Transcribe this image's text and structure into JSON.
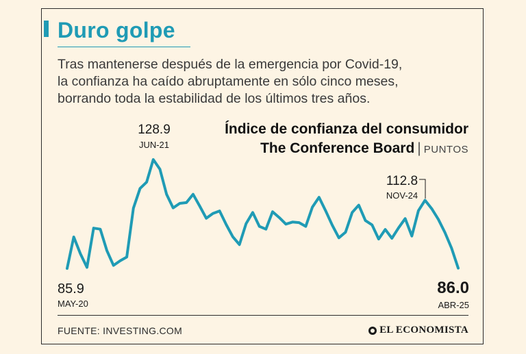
{
  "header": {
    "title": "Duro golpe",
    "subtitle_lines": [
      "Tras mantenerse después de la emergencia por Covid-19,",
      "la confianza ha caído abruptamente en sólo cinco meses,",
      "borrando toda la estabilidad de los últimos tres años."
    ]
  },
  "chart_title": {
    "line1": "Índice de confianza del consumidor",
    "line2": "The Conference Board",
    "units": "PUNTOS"
  },
  "footer": {
    "source": "FUENTE: INVESTING.COM",
    "brand": "EL ECONOMISTA"
  },
  "colors": {
    "line": "#1f9bb5",
    "accent": "#1f9bb5",
    "background": "#fdf4e4",
    "text": "#2b2b2b"
  },
  "chart_data": {
    "type": "line",
    "title": "Índice de confianza del consumidor",
    "xlabel": "",
    "ylabel": "PUNTOS",
    "ylim": [
      85,
      130
    ],
    "grid": false,
    "legend": "none",
    "x": [
      "2020-05",
      "2020-06",
      "2020-07",
      "2020-08",
      "2020-09",
      "2020-10",
      "2020-11",
      "2020-12",
      "2021-01",
      "2021-02",
      "2021-03",
      "2021-04",
      "2021-05",
      "2021-06",
      "2021-07",
      "2021-08",
      "2021-09",
      "2021-10",
      "2021-11",
      "2021-12",
      "2022-01",
      "2022-02",
      "2022-03",
      "2022-04",
      "2022-05",
      "2022-06",
      "2022-07",
      "2022-08",
      "2022-09",
      "2022-10",
      "2022-11",
      "2022-12",
      "2023-01",
      "2023-02",
      "2023-03",
      "2023-04",
      "2023-05",
      "2023-06",
      "2023-07",
      "2023-08",
      "2023-09",
      "2023-10",
      "2023-11",
      "2023-12",
      "2024-01",
      "2024-02",
      "2024-03",
      "2024-04",
      "2024-05",
      "2024-06",
      "2024-07",
      "2024-08",
      "2024-09",
      "2024-10",
      "2024-11",
      "2024-12",
      "2025-01",
      "2025-02",
      "2025-03",
      "2025-04"
    ],
    "values": [
      85.9,
      98.3,
      91.7,
      86.3,
      101.8,
      101.4,
      92.9,
      87.1,
      88.9,
      90.4,
      109.7,
      117.5,
      120.0,
      128.9,
      125.1,
      115.2,
      109.8,
      111.6,
      111.9,
      115.2,
      110.5,
      105.7,
      107.6,
      108.6,
      103.2,
      98.4,
      95.3,
      103.6,
      108.0,
      102.5,
      101.4,
      108.3,
      106.0,
      103.4,
      104.2,
      104.0,
      102.5,
      110.1,
      114.0,
      108.7,
      103.0,
      98.0,
      100.2,
      108.0,
      110.9,
      104.8,
      103.1,
      97.5,
      101.3,
      97.8,
      101.9,
      105.6,
      98.7,
      108.7,
      112.8,
      109.5,
      105.3,
      100.1,
      93.9,
      86.0
    ],
    "annotations": [
      {
        "index": 0,
        "value": "85.9",
        "date": "MAY-20"
      },
      {
        "index": 13,
        "value": "128.9",
        "date": "JUN-21"
      },
      {
        "index": 54,
        "value": "112.8",
        "date": "NOV-24"
      },
      {
        "index": 59,
        "value": "86.0",
        "date": "ABR-25"
      }
    ]
  }
}
